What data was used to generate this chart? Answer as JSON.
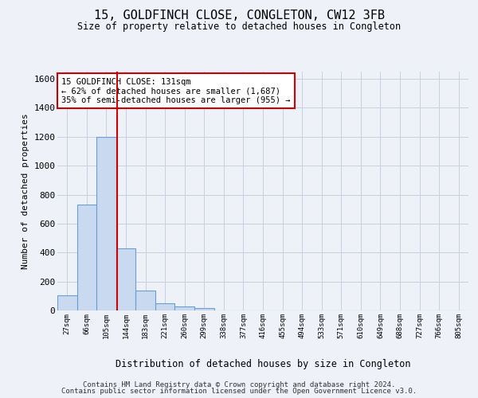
{
  "title": "15, GOLDFINCH CLOSE, CONGLETON, CW12 3FB",
  "subtitle": "Size of property relative to detached houses in Congleton",
  "xlabel": "Distribution of detached houses by size in Congleton",
  "ylabel": "Number of detached properties",
  "footer_line1": "Contains HM Land Registry data © Crown copyright and database right 2024.",
  "footer_line2": "Contains public sector information licensed under the Open Government Licence v3.0.",
  "bar_color": "#c9d9f0",
  "bar_edge_color": "#6b9fd4",
  "grid_color": "#c8d0e0",
  "background_color": "#eef2f8",
  "vline_color": "#cc0000",
  "vline_index": 2.55,
  "annotation_text_line1": "15 GOLDFINCH CLOSE: 131sqm",
  "annotation_text_line2": "← 62% of detached houses are smaller (1,687)",
  "annotation_text_line3": "35% of semi-detached houses are larger (955) →",
  "annotation_box_color": "#ffffff",
  "annotation_border_color": "#cc0000",
  "categories": [
    "27sqm",
    "66sqm",
    "105sqm",
    "144sqm",
    "183sqm",
    "221sqm",
    "260sqm",
    "299sqm",
    "338sqm",
    "377sqm",
    "416sqm",
    "455sqm",
    "494sqm",
    "533sqm",
    "571sqm",
    "610sqm",
    "649sqm",
    "688sqm",
    "727sqm",
    "766sqm",
    "805sqm"
  ],
  "values": [
    105,
    730,
    1200,
    430,
    140,
    50,
    30,
    15,
    0,
    0,
    0,
    0,
    0,
    0,
    0,
    0,
    0,
    0,
    0,
    0,
    0
  ],
  "ylim": [
    0,
    1650
  ],
  "yticks": [
    0,
    200,
    400,
    600,
    800,
    1000,
    1200,
    1400,
    1600
  ]
}
